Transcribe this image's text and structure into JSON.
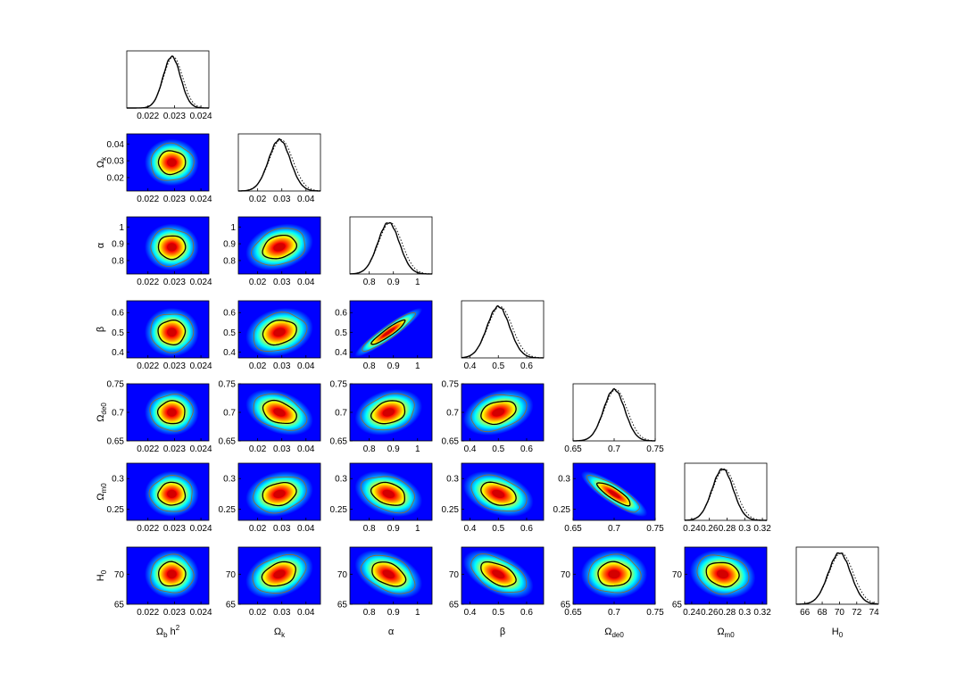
{
  "chart_data": {
    "type": "corner-plot",
    "parameters": [
      {
        "key": "omega_b_h2",
        "label": {
          "main": "Ω",
          "sub": "b",
          "suffix": " h",
          "sup": "2"
        },
        "range": [
          0.0212,
          0.0243
        ],
        "mean": 0.0229,
        "sd": 0.00033,
        "ticks": [
          0.022,
          0.023,
          0.024
        ],
        "tick_labels": [
          "0.022",
          "0.023",
          "0.024"
        ]
      },
      {
        "key": "omega_k",
        "label": {
          "main": "Ω",
          "sub": "k",
          "suffix": "",
          "sup": ""
        },
        "range": [
          0.012,
          0.046
        ],
        "mean": 0.029,
        "sd": 0.0045,
        "ticks": [
          0.02,
          0.03,
          0.04
        ],
        "tick_labels": [
          "0.02",
          "0.03",
          "0.04"
        ]
      },
      {
        "key": "alpha",
        "label": {
          "main": "α",
          "sub": "",
          "suffix": "",
          "sup": ""
        },
        "range": [
          0.72,
          1.06
        ],
        "mean": 0.88,
        "sd": 0.045,
        "ticks": [
          0.8,
          0.9,
          1.0
        ],
        "tick_labels": [
          "0.8",
          "0.9",
          "1"
        ]
      },
      {
        "key": "beta",
        "label": {
          "main": "β",
          "sub": "",
          "suffix": "",
          "sup": ""
        },
        "range": [
          0.37,
          0.66
        ],
        "mean": 0.5,
        "sd": 0.04,
        "ticks": [
          0.4,
          0.5,
          0.6
        ],
        "tick_labels": [
          "0.4",
          "0.5",
          "0.6"
        ]
      },
      {
        "key": "omega_de0",
        "label": {
          "main": "Ω",
          "sub": "de0",
          "suffix": "",
          "sup": ""
        },
        "range": [
          0.65,
          0.75
        ],
        "mean": 0.7,
        "sd": 0.013,
        "ticks": [
          0.65,
          0.7,
          0.75
        ],
        "tick_labels": [
          "0.65",
          "0.7",
          "0.75"
        ]
      },
      {
        "key": "omega_m0",
        "label": {
          "main": "Ω",
          "sub": "m0",
          "suffix": "",
          "sup": ""
        },
        "range": [
          0.232,
          0.325
        ],
        "mean": 0.275,
        "sd": 0.012,
        "ticks": [
          0.24,
          0.26,
          0.28,
          0.3,
          0.32
        ],
        "tick_labels": [
          "0.24",
          "0.26",
          "0.28",
          "0.3",
          "0.32"
        ]
      },
      {
        "key": "H0",
        "label": {
          "main": "H",
          "sub": "0",
          "suffix": "",
          "sup": ""
        },
        "range": [
          65,
          74.5
        ],
        "mean": 70,
        "sd": 1.3,
        "ticks": [
          66,
          68,
          70,
          72,
          74
        ],
        "tick_labels": [
          "66",
          "68",
          "70",
          "72",
          "74"
        ]
      }
    ],
    "pair_yticks": {
      "omega_k": {
        "ticks": [
          0.02,
          0.03,
          0.04
        ],
        "tick_labels": [
          "0.02",
          "0.03",
          "0.04"
        ]
      },
      "alpha": {
        "ticks": [
          0.8,
          0.9,
          1.0
        ],
        "tick_labels": [
          "0.8",
          "0.9",
          "1"
        ]
      },
      "beta": {
        "ticks": [
          0.4,
          0.5,
          0.6
        ],
        "tick_labels": [
          "0.4",
          "0.5",
          "0.6"
        ]
      },
      "omega_de0": {
        "ticks": [
          0.65,
          0.7,
          0.75
        ],
        "tick_labels": [
          "0.65",
          "0.7",
          "0.75"
        ]
      },
      "omega_m0": {
        "ticks": [
          0.25,
          0.3
        ],
        "tick_labels": [
          "0.25",
          "0.3"
        ]
      },
      "H0": {
        "ticks": [
          65,
          70
        ],
        "tick_labels": [
          "65",
          "70"
        ]
      }
    },
    "correlations": {
      "omega_b_h2|omega_k": 0.0,
      "omega_b_h2|alpha": 0.0,
      "omega_b_h2|beta": 0.0,
      "omega_b_h2|omega_de0": 0.0,
      "omega_b_h2|omega_m0": 0.0,
      "omega_b_h2|H0": 0.0,
      "omega_k|alpha": 0.25,
      "omega_k|beta": 0.2,
      "omega_k|omega_de0": -0.35,
      "omega_k|omega_m0": 0.2,
      "omega_k|H0": 0.3,
      "alpha|beta": 0.93,
      "alpha|omega_de0": 0.25,
      "alpha|omega_m0": -0.3,
      "alpha|H0": -0.4,
      "beta|omega_de0": 0.3,
      "beta|omega_m0": -0.35,
      "beta|H0": -0.5,
      "omega_de0|omega_m0": -0.85,
      "omega_de0|H0": 0.0,
      "omega_m0|H0": -0.15
    },
    "histogram_styles": {
      "marginal": "solid",
      "mean_likelihood": "dotted"
    },
    "colormap": [
      "#00008f",
      "#0000ff",
      "#0080ff",
      "#00ffff",
      "#80ff80",
      "#ffff00",
      "#ff8000",
      "#ff0000",
      "#800000"
    ],
    "contour_colors": {
      "inner": "#000000",
      "outer": "#8b6b3a"
    }
  }
}
